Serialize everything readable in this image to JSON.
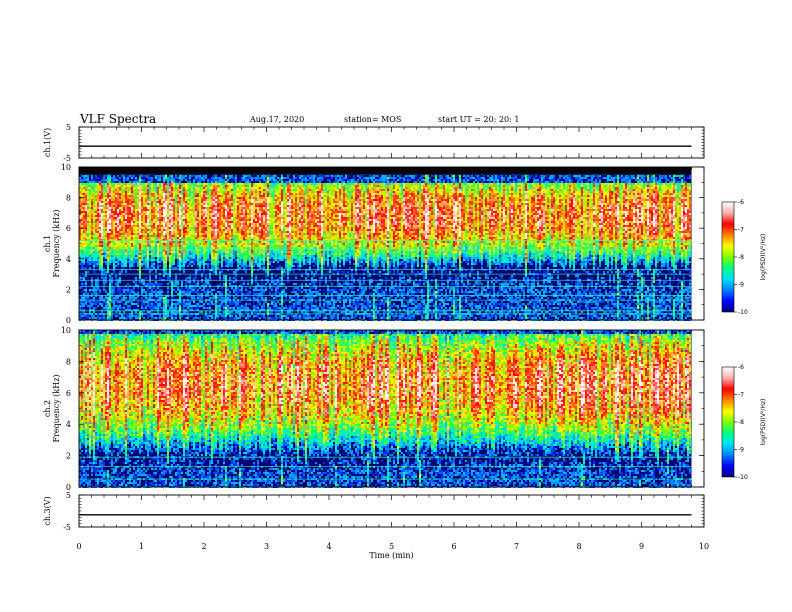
{
  "header": {
    "title": "VLF Spectra",
    "date": "Aug.17, 2020",
    "station": "station= MOS",
    "start": "start  UT  =   20: 20: 1"
  },
  "colors": {
    "colormap": [
      "#000080",
      "#0000ff",
      "#0080ff",
      "#00e0ff",
      "#00ff80",
      "#80ff00",
      "#ffff00",
      "#ff8000",
      "#ff0000",
      "#ffb0b0",
      "#ffffff"
    ],
    "axis": "#000000",
    "trace": "#000000"
  },
  "chart_data": [
    {
      "type": "line",
      "panel": "ch1-voltage",
      "ylabel": "ch.1(V)",
      "ylim": [
        -5,
        5
      ],
      "yticks": [
        "5",
        "-5"
      ],
      "xlim": [
        0,
        10
      ],
      "series": [
        {
          "x": [
            0,
            9.8
          ],
          "y": [
            -1.2,
            -1.2
          ]
        }
      ]
    },
    {
      "type": "heatmap",
      "panel": "ch1-spectrogram",
      "ylabel": "ch.1\nFrequency (kHz)",
      "ylim": [
        0,
        10
      ],
      "yticks": [
        "0",
        "2",
        "4",
        "6",
        "8",
        "10"
      ],
      "xlim": [
        0,
        10
      ],
      "data_end_min": 9.8,
      "colorbar": {
        "label": "log(PSD)(V²/Hz)",
        "range": [
          -10,
          -6
        ],
        "ticks": [
          "-6",
          "-7",
          "-8",
          "-9",
          "-10"
        ]
      },
      "band_khz": [
        3.5,
        9.0
      ],
      "band_peak_khz": 6.8,
      "black_region_khz": [
        9.5,
        10
      ],
      "horizontal_lines_khz": [
        0.4,
        0.6,
        1.3,
        1.6,
        2.2,
        2.6,
        3.0,
        3.3,
        4.6,
        5.2
      ]
    },
    {
      "type": "heatmap",
      "panel": "ch2-spectrogram",
      "ylabel": "ch.2\nFrequency (kHz)",
      "ylim": [
        0,
        10
      ],
      "yticks": [
        "0",
        "2",
        "4",
        "6",
        "8",
        "10"
      ],
      "xlim": [
        0,
        10
      ],
      "data_end_min": 9.8,
      "colorbar": {
        "label": "log(PSD)(V²/Hz)",
        "range": [
          -10,
          -6
        ],
        "ticks": [
          "-6",
          "-7",
          "-8",
          "-9",
          "-10"
        ]
      },
      "band_khz": [
        2.5,
        9.8
      ],
      "band_peak_khz": 6.5,
      "horizontal_lines_khz": [
        0.5,
        1.3,
        1.9
      ]
    },
    {
      "type": "line",
      "panel": "ch3-voltage",
      "ylabel": "ch.3(V)",
      "ylim": [
        -5,
        5
      ],
      "yticks": [
        "5",
        "-5"
      ],
      "xlim": [
        0,
        10
      ],
      "xlabel": "Time  (min)",
      "xticks": [
        "0",
        "1",
        "2",
        "3",
        "4",
        "5",
        "6",
        "7",
        "8",
        "9",
        "10"
      ],
      "series": [
        {
          "x": [
            0,
            9.8
          ],
          "y": [
            -1.2,
            -1.2
          ]
        }
      ]
    }
  ]
}
